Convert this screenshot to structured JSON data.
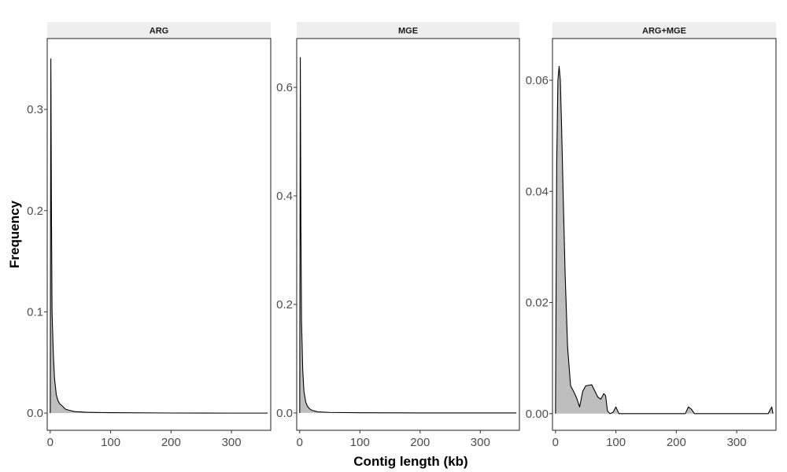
{
  "chart_data": {
    "type": "area",
    "xlabel": "Contig length (kb)",
    "ylabel": "Frequency",
    "panels": [
      {
        "title": "ARG",
        "xlim": [
          -5,
          365
        ],
        "ylim": [
          -0.017,
          0.37
        ],
        "x_ticks": [
          0,
          100,
          200,
          300
        ],
        "y_ticks": [
          0.0,
          0.1,
          0.2,
          0.3
        ],
        "y_tick_labels": [
          "0.0",
          "0.1",
          "0.2",
          "0.3"
        ],
        "series": [
          {
            "x": [
              0,
              1,
              2,
              3,
              5,
              7,
              10,
              13,
              16,
              20,
              25,
              30,
              40,
              60,
              100,
              200,
              300,
              360
            ],
            "y": [
              0.0,
              0.35,
              0.2,
              0.1,
              0.06,
              0.035,
              0.018,
              0.012,
              0.009,
              0.007,
              0.004,
              0.003,
              0.0015,
              0.0008,
              0.0004,
              0.0001,
              0.0,
              0.0
            ]
          }
        ]
      },
      {
        "title": "MGE",
        "xlim": [
          -5,
          365
        ],
        "ylim": [
          -0.032,
          0.69
        ],
        "x_ticks": [
          0,
          100,
          200,
          300
        ],
        "y_ticks": [
          0.0,
          0.2,
          0.4,
          0.6
        ],
        "y_tick_labels": [
          "0.0",
          "0.2",
          "0.4",
          "0.6"
        ],
        "series": [
          {
            "x": [
              0,
              1,
              2,
              3,
              5,
              7,
              10,
              13,
              16,
              20,
              30,
              50,
              100,
              200,
              300,
              360
            ],
            "y": [
              0.0,
              0.655,
              0.35,
              0.17,
              0.08,
              0.04,
              0.02,
              0.012,
              0.008,
              0.005,
              0.002,
              0.001,
              0.0003,
              0.0,
              0.0,
              0.0
            ]
          }
        ]
      },
      {
        "title": "ARG+MGE",
        "xlim": [
          -5,
          365
        ],
        "ylim": [
          -0.003,
          0.0675
        ],
        "x_ticks": [
          0,
          100,
          200,
          300
        ],
        "y_ticks": [
          0.0,
          0.02,
          0.04,
          0.06
        ],
        "y_tick_labels": [
          "0.00",
          "0.02",
          "0.04",
          "0.06"
        ],
        "series": [
          {
            "x": [
              0,
              2,
              4,
              6,
              8,
              10,
              13,
              16,
              20,
              25,
              30,
              35,
              40,
              45,
              50,
              60,
              70,
              75,
              80,
              83,
              86,
              90,
              95,
              100,
              105,
              110,
              150,
              215,
              220,
              225,
              230,
              300,
              352,
              358,
              360
            ],
            "y": [
              0.0,
              0.045,
              0.06,
              0.0625,
              0.06,
              0.052,
              0.038,
              0.025,
              0.012,
              0.005,
              0.004,
              0.0028,
              0.0012,
              0.004,
              0.005,
              0.0052,
              0.003,
              0.0026,
              0.0036,
              0.0032,
              0.0005,
              0.0,
              0.0002,
              0.0012,
              0.0,
              0.0,
              0.0,
              0.0,
              0.0012,
              0.0008,
              0.0,
              0.0,
              0.0,
              0.0012,
              0.0
            ]
          }
        ]
      }
    ]
  }
}
